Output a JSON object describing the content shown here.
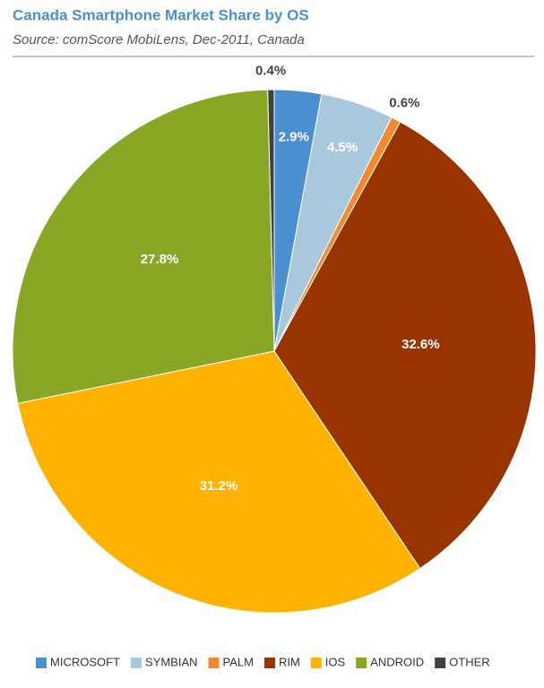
{
  "chart_data": {
    "type": "pie",
    "title": "Canada Smartphone Market Share by OS",
    "subtitle": "Source: comScore MobiLens, Dec-2011, Canada",
    "categories": [
      "MICROSOFT",
      "SYMBIAN",
      "PALM",
      "RIM",
      "IOS",
      "ANDROID",
      "OTHER"
    ],
    "values": [
      2.9,
      4.5,
      0.6,
      32.6,
      31.2,
      27.8,
      0.4
    ],
    "value_labels": [
      "2.9%",
      "4.5%",
      "0.6%",
      "32.6%",
      "31.2%",
      "27.8%",
      "0.4%"
    ],
    "colors": [
      "#4a90d0",
      "#a9c8dc",
      "#f28a30",
      "#993300",
      "#ffb300",
      "#88a825",
      "#404040"
    ],
    "legend": "bottom"
  }
}
